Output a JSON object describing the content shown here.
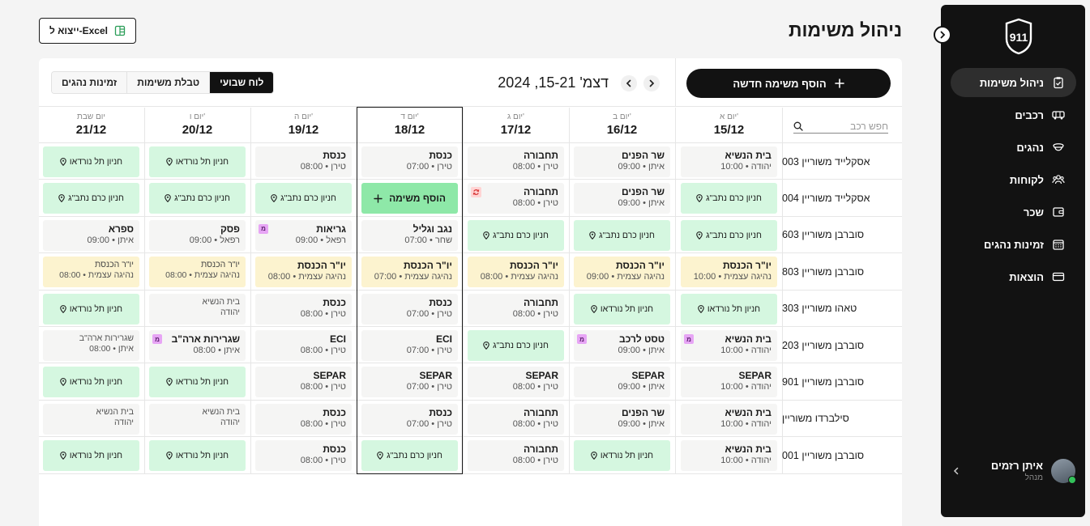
{
  "header": {
    "title": "ניהול משימות",
    "export_label": "ייצוא ל-Excel"
  },
  "sidebar": {
    "logo_text": "911",
    "items": [
      {
        "label": "ניהול משימות",
        "icon": "clipboard-icon",
        "active": true
      },
      {
        "label": "רכבים",
        "icon": "bus-icon"
      },
      {
        "label": "נהגים",
        "icon": "driver-cap-icon"
      },
      {
        "label": "לקוחות",
        "icon": "users-icon"
      },
      {
        "label": "שכר",
        "icon": "wallet-icon"
      },
      {
        "label": "זמינות נהגים",
        "icon": "calendar-icon"
      },
      {
        "label": "הוצאות",
        "icon": "credit-card-icon"
      }
    ],
    "user": {
      "name": "איתן רזמים",
      "role": "מנהל"
    }
  },
  "toolbar": {
    "add_task_label": "הוסף משימה חדשה",
    "week_range": "דצמ' 15-21, 2024",
    "tabs": [
      {
        "label": "לוח שבועי",
        "active": true
      },
      {
        "label": "טבלת משימות"
      },
      {
        "label": "זמינות נהגים"
      }
    ]
  },
  "search": {
    "placeholder": "חפש רכב"
  },
  "days": [
    {
      "name": "יום א'",
      "date": "15/12"
    },
    {
      "name": "יום ב'",
      "date": "16/12"
    },
    {
      "name": "יום ג'",
      "date": "17/12"
    },
    {
      "name": "יום ד'",
      "date": "18/12",
      "today": true
    },
    {
      "name": "יום ה'",
      "date": "19/12"
    },
    {
      "name": "יום ו'",
      "date": "20/12"
    },
    {
      "name": "יום שבת",
      "date": "21/12"
    }
  ],
  "add_cell_label": "הוסף משימה",
  "rows": [
    {
      "vehicle": "אסקלייד משוריין 003",
      "cells": [
        {
          "t": "task",
          "l1": "בית הנשיא",
          "l2": "יהודה • 10:00"
        },
        {
          "t": "task",
          "l1": "שר הפנים",
          "l2": "איתן • 09:00"
        },
        {
          "t": "task",
          "l1": "תחבורה",
          "l2": "טירן • 08:00"
        },
        {
          "t": "task",
          "l1": "כנסת",
          "l2": "טירן • 07:00"
        },
        {
          "t": "task",
          "l1": "כנסת",
          "l2": "טירן • 08:00"
        },
        {
          "t": "park",
          "l1": "חניון תל נורדאו"
        },
        {
          "t": "park",
          "l1": "חניון תל נורדאו"
        }
      ]
    },
    {
      "vehicle": "אסקלייד משוריין 004",
      "cells": [
        {
          "t": "park",
          "l1": "חניון כרם נתב\"ג"
        },
        {
          "t": "task",
          "l1": "שר הפנים",
          "l2": "איתן • 09:00"
        },
        {
          "t": "task",
          "l1": "תחבורה",
          "l2": "טירן • 08:00",
          "sync": true
        },
        {
          "t": "add"
        },
        {
          "t": "park",
          "l1": "חניון כרם נתב\"ג"
        },
        {
          "t": "park",
          "l1": "חניון כרם נתב\"ג"
        },
        {
          "t": "park",
          "l1": "חניון כרם נתב\"ג"
        }
      ]
    },
    {
      "vehicle": "סוברבן משוריין 603",
      "cells": [
        {
          "t": "park",
          "l1": "חניון כרם נתב\"ג"
        },
        {
          "t": "park",
          "l1": "חניון כרם נתב\"ג"
        },
        {
          "t": "park",
          "l1": "חניון כרם נתב\"ג"
        },
        {
          "t": "task",
          "l1": "נגב וגליל",
          "l2": "שחר • 07:00"
        },
        {
          "t": "task",
          "l1": "גריאות",
          "l2": "רפאל • 09:00",
          "badge": "מ"
        },
        {
          "t": "task",
          "l1": "פסק",
          "l2": "רפאל • 09:00"
        },
        {
          "t": "task",
          "l1": "ספרא",
          "l2": "איתן • 09:00"
        }
      ]
    },
    {
      "vehicle": "סוברבן משוריין 803",
      "cells": [
        {
          "t": "task",
          "l1": "יו\"ר הכנסת",
          "l2": "נהיגה עצמית • 10:00",
          "yellow": true
        },
        {
          "t": "task",
          "l1": "יו\"ר הכנסת",
          "l2": "נהיגה עצמית • 09:00",
          "yellow": true
        },
        {
          "t": "task",
          "l1": "יו\"ר הכנסת",
          "l2": "נהיגה עצמית • 08:00",
          "yellow": true
        },
        {
          "t": "task",
          "l1": "יו\"ר הכנסת",
          "l2": "נהיגה עצמית • 07:00",
          "yellow": true
        },
        {
          "t": "task",
          "l1": "יו\"ר הכנסת",
          "l2": "נהיגה עצמית • 08:00",
          "yellow": true
        },
        {
          "t": "task",
          "l1": "יו\"ר הכנסת",
          "l2": "נהיגה עצמית • 08:00",
          "yellow": true,
          "dim": true
        },
        {
          "t": "task",
          "l1": "יו\"ר הכנסת",
          "l2": "נהיגה עצמית • 08:00",
          "yellow": true,
          "dim": true
        }
      ]
    },
    {
      "vehicle": "טאהו משוריין 303",
      "cells": [
        {
          "t": "park",
          "l1": "חניון תל נורדאו"
        },
        {
          "t": "park",
          "l1": "חניון תל נורדאו"
        },
        {
          "t": "task",
          "l1": "תחבורה",
          "l2": "טירן • 08:00"
        },
        {
          "t": "task",
          "l1": "כנסת",
          "l2": "טירן • 07:00"
        },
        {
          "t": "task",
          "l1": "כנסת",
          "l2": "טירן • 08:00"
        },
        {
          "t": "task",
          "l1": "בית הנשיא",
          "l2": "יהודה",
          "dim": true
        },
        {
          "t": "park",
          "l1": "חניון תל נורדאו"
        }
      ]
    },
    {
      "vehicle": "סוברבן משוריין 203",
      "cells": [
        {
          "t": "task",
          "l1": "בית הנשיא",
          "l2": "יהודה • 10:00",
          "badge": "מ"
        },
        {
          "t": "task",
          "l1": "טסט לרכב",
          "l2": "איתן • 09:00",
          "badge": "מ"
        },
        {
          "t": "park",
          "l1": "חניון כרם נתב\"ג"
        },
        {
          "t": "task",
          "l1": "ECI",
          "l2": "טירן • 07:00"
        },
        {
          "t": "task",
          "l1": "ECI",
          "l2": "טירן • 08:00"
        },
        {
          "t": "task",
          "l1": "שגרירות ארה\"ב",
          "l2": "איתן • 08:00",
          "badge": "מ"
        },
        {
          "t": "task",
          "l1": "שגרירות ארה\"ב",
          "l2": "איתן • 08:00",
          "dim": true
        }
      ]
    },
    {
      "vehicle": "סוברבן משוריין 901",
      "cells": [
        {
          "t": "task",
          "l1": "SEPAR",
          "l2": "יהודה • 10:00"
        },
        {
          "t": "task",
          "l1": "SEPAR",
          "l2": "איתן • 09:00"
        },
        {
          "t": "task",
          "l1": "SEPAR",
          "l2": "טירן • 08:00"
        },
        {
          "t": "task",
          "l1": "SEPAR",
          "l2": "טירן • 07:00"
        },
        {
          "t": "task",
          "l1": "SEPAR",
          "l2": "טירן • 08:00"
        },
        {
          "t": "park",
          "l1": "חניון תל נורדאו"
        },
        {
          "t": "park",
          "l1": "חניון תל נורדאו"
        }
      ]
    },
    {
      "vehicle": "סילברדו משוריין",
      "cells": [
        {
          "t": "task",
          "l1": "בית הנשיא",
          "l2": "יהודה • 10:00"
        },
        {
          "t": "task",
          "l1": "שר הפנים",
          "l2": "איתן • 09:00"
        },
        {
          "t": "task",
          "l1": "תחבורה",
          "l2": "טירן • 08:00"
        },
        {
          "t": "task",
          "l1": "כנסת",
          "l2": "טירן • 07:00"
        },
        {
          "t": "task",
          "l1": "כנסת",
          "l2": "טירן • 08:00"
        },
        {
          "t": "task",
          "l1": "בית הנשיא",
          "l2": "יהודה",
          "dim": true
        },
        {
          "t": "task",
          "l1": "בית הנשיא",
          "l2": "יהודה",
          "dim": true
        }
      ]
    },
    {
      "vehicle": "סוברבן משוריין 001",
      "cells": [
        {
          "t": "task",
          "l1": "בית הנשיא",
          "l2": "יהודה • 10:00"
        },
        {
          "t": "park",
          "l1": "חניון תל נורדאו"
        },
        {
          "t": "task",
          "l1": "תחבורה",
          "l2": "טירן • 08:00"
        },
        {
          "t": "park",
          "l1": "חניון כרם נתב\"ג"
        },
        {
          "t": "task",
          "l1": "כנסת",
          "l2": "טירן • 08:00"
        },
        {
          "t": "park",
          "l1": "חניון תל נורדאו"
        },
        {
          "t": "park",
          "l1": "חניון תל נורדאו"
        }
      ]
    }
  ]
}
